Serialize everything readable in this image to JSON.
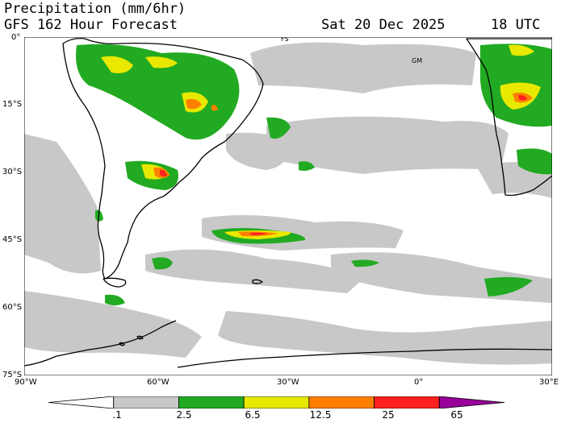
{
  "header": {
    "title": "Precipitation (mm/6hr)",
    "subtitle": "GFS 162 Hour Forecast",
    "valid_date": "Sat 20 Dec 2025",
    "valid_time": "18 UTC"
  },
  "map": {
    "lat_labels": [
      "0°",
      "15°S",
      "30°S",
      "45°S",
      "60°S",
      "75°S"
    ],
    "lon_labels": [
      "90°W",
      "60°W",
      "30°W",
      "0°",
      "30°E"
    ],
    "place_labels": [
      "FS",
      "GM"
    ],
    "colors": {
      "land_outline": "#000000",
      "light": "#c8c8c8",
      "green": "#22aa22",
      "yellow": "#e8e800",
      "orange": "#ff7f00",
      "red": "#ff2020",
      "purple": "#990099"
    }
  },
  "colorbar": {
    "labels": [
      ".1",
      "2.5",
      "6.5",
      "12.5",
      "25",
      "65"
    ],
    "colors": [
      "#ffffff",
      "#c8c8c8",
      "#22aa22",
      "#e8e800",
      "#ff7f00",
      "#ff2020",
      "#990099"
    ]
  }
}
